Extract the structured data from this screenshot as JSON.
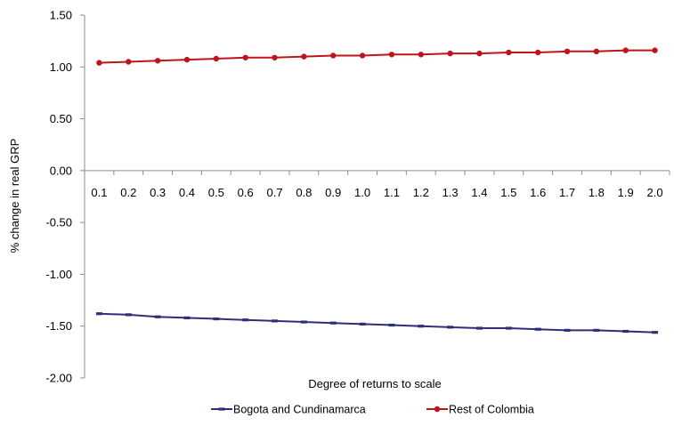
{
  "chart_data": {
    "type": "line",
    "title": "",
    "xlabel": "Degree of returns to scale",
    "ylabel": "% change in real GRP",
    "categories": [
      "0.1",
      "0.2",
      "0.3",
      "0.4",
      "0.5",
      "0.6",
      "0.7",
      "0.8",
      "0.9",
      "1.0",
      "1.1",
      "1.2",
      "1.3",
      "1.4",
      "1.5",
      "1.6",
      "1.7",
      "1.8",
      "1.9",
      "2.0"
    ],
    "ylim": [
      -2.0,
      1.5
    ],
    "yticks": [
      "1.50",
      "1.00",
      "0.50",
      "0.00",
      "-0.50",
      "-1.00",
      "-1.50",
      "-2.00"
    ],
    "ytick_values": [
      1.5,
      1.0,
      0.5,
      0.0,
      -0.5,
      -1.0,
      -1.5,
      -2.0
    ],
    "grid": false,
    "legend_position": "bottom",
    "series": [
      {
        "name": "Bogota and Cundinamarca",
        "color": "#2e2e7a",
        "marker": "dash",
        "values": [
          -1.38,
          -1.39,
          -1.41,
          -1.42,
          -1.43,
          -1.44,
          -1.45,
          -1.46,
          -1.47,
          -1.48,
          -1.49,
          -1.5,
          -1.51,
          -1.52,
          -1.52,
          -1.53,
          -1.54,
          -1.54,
          -1.55,
          -1.56
        ]
      },
      {
        "name": "Rest of Colombia",
        "color": "#c0141c",
        "marker": "circle",
        "values": [
          1.04,
          1.05,
          1.06,
          1.07,
          1.08,
          1.09,
          1.09,
          1.1,
          1.11,
          1.11,
          1.12,
          1.12,
          1.13,
          1.13,
          1.14,
          1.14,
          1.15,
          1.15,
          1.16,
          1.16
        ]
      }
    ]
  }
}
